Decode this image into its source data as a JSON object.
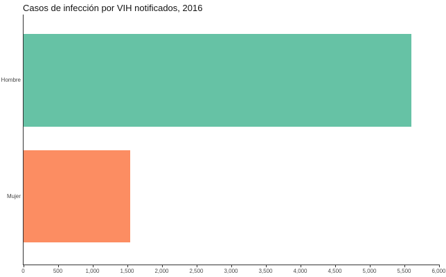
{
  "chart_data": {
    "type": "bar",
    "orientation": "horizontal",
    "title": "Casos de infección por VIH notificados, 2016",
    "categories": [
      "Hombre",
      "Mujer"
    ],
    "values": [
      5600,
      1540
    ],
    "colors": [
      "#66c2a5",
      "#fc8d62"
    ],
    "xlabel": "",
    "ylabel": "",
    "xlim": [
      0,
      6000
    ],
    "xticks": [
      0,
      500,
      1000,
      1500,
      2000,
      2500,
      3000,
      3500,
      4000,
      4500,
      5000,
      5500,
      6000
    ],
    "xtick_labels": [
      "0",
      "500",
      "1,000",
      "1,500",
      "2,000",
      "2,500",
      "3,000",
      "3,500",
      "4,000",
      "4,500",
      "5,000",
      "5,500",
      "6,000"
    ],
    "grid": false,
    "legend": false,
    "axis_color": "#333333"
  }
}
